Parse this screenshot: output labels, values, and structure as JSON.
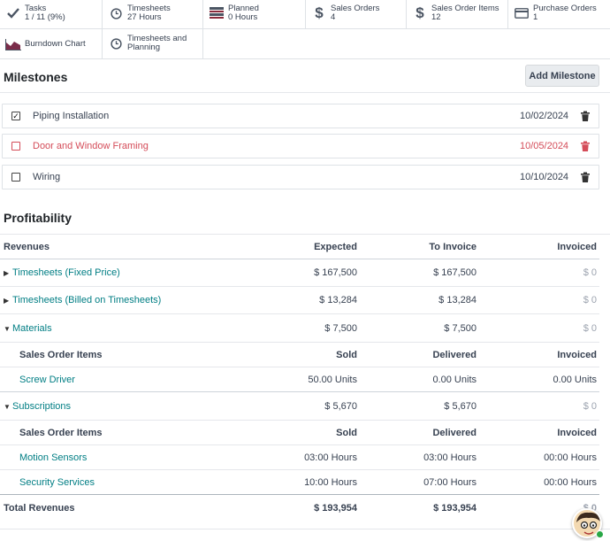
{
  "stats": [
    {
      "icon": "check-icon",
      "title": "Tasks",
      "value": "1 / 11 (9%)"
    },
    {
      "icon": "clock-icon",
      "title": "Timesheets",
      "value": "27 Hours"
    },
    {
      "icon": "gantt-icon",
      "title": "Planned",
      "value": "0 Hours"
    },
    {
      "icon": "dollar-icon",
      "title": "Sales Orders",
      "value": "4"
    },
    {
      "icon": "dollar-icon",
      "title": "Sales Order Items",
      "value": "12"
    },
    {
      "icon": "credit-card-icon",
      "title": "Purchase Orders",
      "value": "1"
    },
    {
      "icon": "area-chart-icon",
      "title": "Burndown Chart",
      "value": ""
    },
    {
      "icon": "clock-icon",
      "title": "Timesheets and",
      "value": "Planning"
    }
  ],
  "milestones": {
    "title": "Milestones",
    "add_label": "Add Milestone",
    "items": [
      {
        "name": "Piping Installation",
        "date": "10/02/2024",
        "checked": true,
        "late": false
      },
      {
        "name": "Door and Window Framing",
        "date": "10/05/2024",
        "checked": false,
        "late": true
      },
      {
        "name": "Wiring",
        "date": "10/10/2024",
        "checked": false,
        "late": false
      }
    ]
  },
  "profitability": {
    "title": "Profitability",
    "headers": {
      "label": "Revenues",
      "expected": "Expected",
      "to_invoice": "To Invoice",
      "invoiced": "Invoiced"
    },
    "rows": [
      {
        "label": "Timesheets (Fixed Price)",
        "expected": "$ 167,500",
        "to_invoice": "$ 167,500",
        "invoiced": "$ 0"
      },
      {
        "label": "Timesheets (Billed on Timesheets)",
        "expected": "$ 13,284",
        "to_invoice": "$ 13,284",
        "invoiced": "$ 0"
      },
      {
        "label": "Materials",
        "expected": "$ 7,500",
        "to_invoice": "$ 7,500",
        "invoiced": "$ 0"
      },
      {
        "label": "Subscriptions",
        "expected": "$ 5,670",
        "to_invoice": "$ 5,670",
        "invoiced": "$ 0"
      }
    ],
    "materials_sub": {
      "headers": {
        "label": "Sales Order Items",
        "sold": "Sold",
        "delivered": "Delivered",
        "invoiced": "Invoiced"
      },
      "items": [
        {
          "label": "Screw Driver",
          "sold": "50.00 Units",
          "delivered": "0.00 Units",
          "invoiced": "0.00 Units"
        }
      ]
    },
    "subscriptions_sub": {
      "headers": {
        "label": "Sales Order Items",
        "sold": "Sold",
        "delivered": "Delivered",
        "invoiced": "Invoiced"
      },
      "items": [
        {
          "label": "Motion Sensors",
          "sold": "03:00 Hours",
          "delivered": "03:00 Hours",
          "invoiced": "00:00 Hours"
        },
        {
          "label": "Security Services",
          "sold": "10:00 Hours",
          "delivered": "07:00 Hours",
          "invoiced": "00:00 Hours"
        }
      ]
    },
    "total": {
      "label": "Total Revenues",
      "expected": "$ 193,954",
      "to_invoice": "$ 193,954",
      "invoiced": "$ 0"
    }
  },
  "colors": {
    "link": "#017e84",
    "late": "#d44c59"
  }
}
